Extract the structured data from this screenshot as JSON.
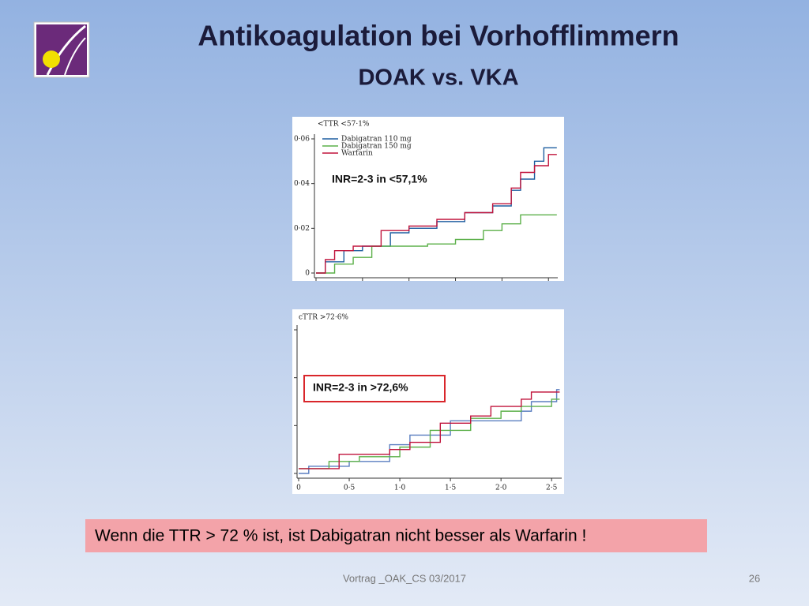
{
  "header": {
    "title": "Antikoagulation bei Vorhofflimmern",
    "subtitle": "DOAK vs. VKA"
  },
  "chart_data": [
    {
      "type": "step",
      "title": "<TTR <57·1%",
      "annotation": "INR=2-3 in <57,1%",
      "xlim": [
        0,
        2.6
      ],
      "ylim": [
        0,
        0.06
      ],
      "xtick_marks": [
        0,
        0.5,
        1,
        1.5,
        2,
        2.5
      ],
      "yticks": [
        0,
        {
          "value": 0.02,
          "label": "0·02"
        },
        {
          "value": 0.04,
          "label": "0·04"
        },
        {
          "value": 0.06,
          "label": "0·06"
        }
      ],
      "series": [
        {
          "name": "Dabigatran 110 mg",
          "color": "#1f5fa0",
          "x": [
            0,
            0.1,
            0.3,
            0.5,
            0.8,
            1.0,
            1.3,
            1.6,
            1.9,
            2.1,
            2.2,
            2.35,
            2.45,
            2.59
          ],
          "values": [
            0,
            0.005,
            0.01,
            0.012,
            0.018,
            0.02,
            0.023,
            0.027,
            0.03,
            0.037,
            0.042,
            0.05,
            0.056,
            0.056
          ]
        },
        {
          "name": "Dabigatran 150 mg",
          "color": "#5cb04a",
          "x": [
            0,
            0.2,
            0.4,
            0.6,
            1.2,
            1.5,
            1.8,
            2.0,
            2.2,
            2.59
          ],
          "values": [
            0,
            0.004,
            0.007,
            0.012,
            0.013,
            0.015,
            0.019,
            0.022,
            0.026,
            0.026
          ]
        },
        {
          "name": "Warfarin",
          "color": "#c0143c",
          "x": [
            0,
            0.1,
            0.2,
            0.4,
            0.7,
            1.0,
            1.3,
            1.6,
            1.9,
            2.1,
            2.2,
            2.35,
            2.5,
            2.59
          ],
          "values": [
            0,
            0.006,
            0.01,
            0.012,
            0.019,
            0.021,
            0.024,
            0.027,
            0.031,
            0.038,
            0.045,
            0.048,
            0.053,
            0.053
          ]
        }
      ]
    },
    {
      "type": "step",
      "title": "cTTR >72·6%",
      "annotation": "INR=2-3 in >72,6%",
      "xlim": [
        0,
        2.6
      ],
      "ylim": [
        0,
        0.06
      ],
      "xticks": [
        0,
        {
          "value": 0.5,
          "label": "0·5"
        },
        {
          "value": 1,
          "label": "1·0"
        },
        {
          "value": 1.5,
          "label": "1·5"
        },
        {
          "value": 2,
          "label": "2·0"
        },
        {
          "value": 2.5,
          "label": "2·5"
        }
      ],
      "ytick_marks": [
        0,
        0.02,
        0.04,
        0.06
      ],
      "series": [
        {
          "color": "#5b7fc0",
          "x": [
            0,
            0.1,
            0.5,
            0.9,
            1.1,
            1.5,
            2.0,
            2.2,
            2.3,
            2.5,
            2.55,
            2.58
          ],
          "values": [
            0,
            0.003,
            0.005,
            0.012,
            0.016,
            0.022,
            0.022,
            0.026,
            0.03,
            0.03,
            0.035,
            0.035
          ]
        },
        {
          "color": "#5cb04a",
          "x": [
            0,
            0.3,
            0.6,
            1.0,
            1.3,
            1.7,
            2.0,
            2.2,
            2.5,
            2.58
          ],
          "values": [
            0.002,
            0.005,
            0.007,
            0.011,
            0.018,
            0.023,
            0.026,
            0.028,
            0.031,
            0.031
          ]
        },
        {
          "color": "#c0143c",
          "x": [
            0,
            0.4,
            0.9,
            1.1,
            1.4,
            1.7,
            1.9,
            2.2,
            2.3,
            2.58
          ],
          "values": [
            0.002,
            0.008,
            0.01,
            0.013,
            0.021,
            0.024,
            0.028,
            0.031,
            0.034,
            0.034
          ]
        }
      ]
    }
  ],
  "callout": "Wenn die TTR > 72 % ist, ist Dabigatran nicht besser als Warfarin !",
  "footer": {
    "text": "Vortrag _OAK_CS 03/2017",
    "page": "26"
  }
}
